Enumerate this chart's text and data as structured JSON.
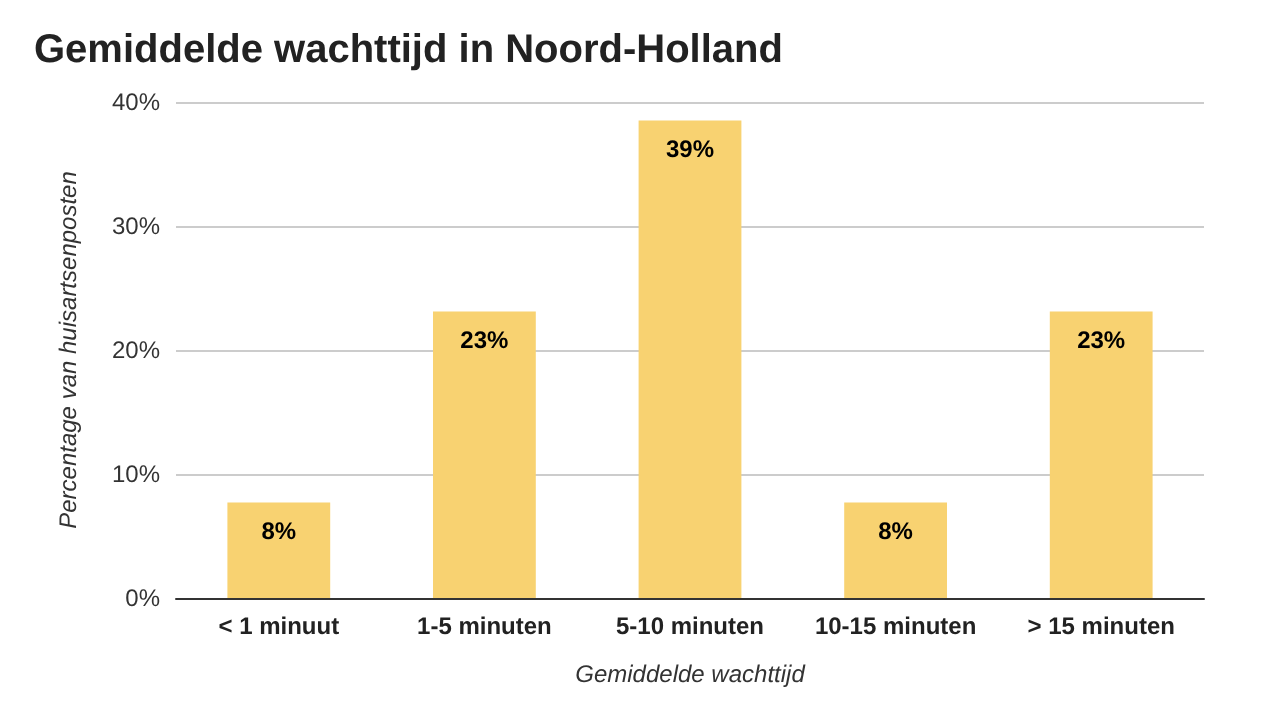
{
  "chart_data": {
    "type": "bar",
    "title": "Gemiddelde wachttijd in Noord-Holland",
    "xlabel": "Gemiddelde wachttijd",
    "ylabel": "Percentage van huisartsenposten",
    "categories": [
      "< 1 minuut",
      "1-5 minuten",
      "5-10 minuten",
      "10-15 minuten",
      "> 15 minuten"
    ],
    "values": [
      7.7,
      23.1,
      38.5,
      7.7,
      23.1
    ],
    "value_labels": [
      "8%",
      "23%",
      "39%",
      "8%",
      "23%"
    ],
    "color": "#f8d271",
    "ylim": [
      0,
      40
    ],
    "yticks": [
      {
        "value": 0,
        "label": "0%"
      },
      {
        "value": 10,
        "label": "10%"
      },
      {
        "value": 20,
        "label": "20%"
      },
      {
        "value": 30,
        "label": "30%"
      },
      {
        "value": 40,
        "label": "40%"
      }
    ],
    "grid": "y"
  }
}
